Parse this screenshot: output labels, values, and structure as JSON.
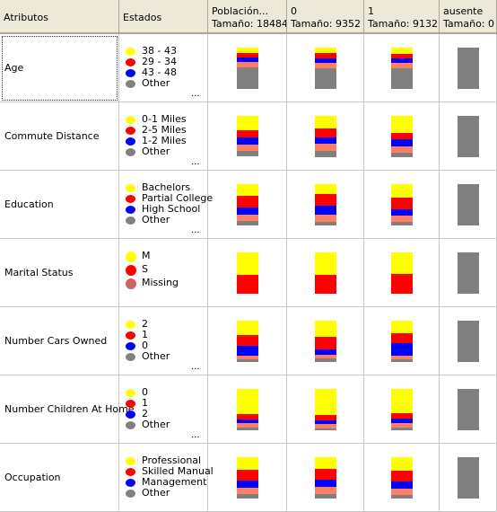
{
  "header": {
    "col_attr": "Atributos",
    "col_states": "Estados",
    "columns": [
      {
        "title": "Población...",
        "size": "Tamaño: 18484"
      },
      {
        "title": "0",
        "size": "Tamaño: 9352"
      },
      {
        "title": "1",
        "size": "Tamaño: 9132"
      },
      {
        "title": "ausente",
        "size": "Tamaño: 0"
      }
    ]
  },
  "colors": {
    "yellow": "#ffff00",
    "red": "#ff0000",
    "blue": "#0000ff",
    "salmon": "#ff8060",
    "gray": "#808080",
    "missing": "#cc6666"
  },
  "rows": [
    {
      "attribute": "Age",
      "selected": true,
      "states": [
        {
          "label": "38 - 43",
          "color": "#ffff00"
        },
        {
          "label": "29 - 34",
          "color": "#ff0000"
        },
        {
          "label": "43 - 48",
          "color": "#0000ff"
        },
        {
          "label": "Other",
          "color": "#808080"
        }
      ],
      "more": "...",
      "bars": [
        [
          0.14,
          0.11,
          0.1,
          0.12,
          0.53
        ],
        [
          0.12,
          0.13,
          0.11,
          0.12,
          0.52
        ],
        [
          0.15,
          0.1,
          0.1,
          0.13,
          0.52
        ],
        [
          0,
          0,
          0,
          0,
          1
        ]
      ]
    },
    {
      "attribute": "Commute Distance",
      "selected": false,
      "states": [
        {
          "label": "0-1 Miles",
          "color": "#ffff00"
        },
        {
          "label": "2-5 Miles",
          "color": "#ff0000"
        },
        {
          "label": "1-2 Miles",
          "color": "#0000ff"
        },
        {
          "label": "Other",
          "color": "#808080"
        }
      ],
      "more": "...",
      "bars": [
        [
          0.35,
          0.18,
          0.18,
          0.16,
          0.13
        ],
        [
          0.3,
          0.21,
          0.16,
          0.18,
          0.15
        ],
        [
          0.41,
          0.15,
          0.17,
          0.15,
          0.12
        ],
        [
          0,
          0,
          0,
          0,
          1
        ]
      ]
    },
    {
      "attribute": "Education",
      "selected": false,
      "states": [
        {
          "label": "Bachelors",
          "color": "#ffff00"
        },
        {
          "label": "Partial College",
          "color": "#ff0000"
        },
        {
          "label": "High School",
          "color": "#0000ff"
        },
        {
          "label": "Other",
          "color": "#808080"
        }
      ],
      "more": "...",
      "bars": [
        [
          0.28,
          0.28,
          0.18,
          0.16,
          0.1
        ],
        [
          0.24,
          0.28,
          0.21,
          0.17,
          0.1
        ],
        [
          0.32,
          0.28,
          0.16,
          0.15,
          0.09
        ],
        [
          0,
          0,
          0,
          0,
          1
        ]
      ]
    },
    {
      "attribute": "Marital Status",
      "selected": false,
      "states": [
        {
          "label": "M",
          "color": "#ffff00"
        },
        {
          "label": "S",
          "color": "#ff0000"
        },
        {
          "label": "Missing",
          "color": "#cc6666"
        }
      ],
      "more": "",
      "bars": [
        [
          0.54,
          0.46,
          0,
          0,
          0
        ],
        [
          0.54,
          0.46,
          0,
          0,
          0
        ],
        [
          0.52,
          0.48,
          0,
          0,
          0
        ],
        [
          0,
          0,
          0,
          0,
          1
        ]
      ]
    },
    {
      "attribute": "Number Cars Owned",
      "selected": false,
      "states": [
        {
          "label": "2",
          "color": "#ffff00"
        },
        {
          "label": "1",
          "color": "#ff0000"
        },
        {
          "label": "0",
          "color": "#0000ff"
        },
        {
          "label": "Other",
          "color": "#808080"
        }
      ],
      "more": "...",
      "bars": [
        [
          0.35,
          0.27,
          0.23,
          0.08,
          0.07
        ],
        [
          0.4,
          0.3,
          0.13,
          0.09,
          0.08
        ],
        [
          0.3,
          0.24,
          0.3,
          0.09,
          0.07
        ],
        [
          0,
          0,
          0,
          0,
          1
        ]
      ]
    },
    {
      "attribute": "Number Children At Home",
      "selected": false,
      "states": [
        {
          "label": "0",
          "color": "#ffff00"
        },
        {
          "label": "1",
          "color": "#ff0000"
        },
        {
          "label": "2",
          "color": "#0000ff"
        },
        {
          "label": "Other",
          "color": "#808080"
        }
      ],
      "more": "...",
      "bars": [
        [
          0.6,
          0.13,
          0.09,
          0.1,
          0.08
        ],
        [
          0.62,
          0.12,
          0.08,
          0.1,
          0.08
        ],
        [
          0.58,
          0.14,
          0.1,
          0.1,
          0.08
        ],
        [
          0,
          0,
          0,
          0,
          1
        ]
      ]
    },
    {
      "attribute": "Occupation",
      "selected": false,
      "states": [
        {
          "label": "Professional",
          "color": "#ffff00"
        },
        {
          "label": "Skilled Manual",
          "color": "#ff0000"
        },
        {
          "label": "Management",
          "color": "#0000ff"
        },
        {
          "label": "Other",
          "color": "#808080"
        }
      ],
      "more": "",
      "bars": [
        [
          0.3,
          0.26,
          0.18,
          0.16,
          0.1
        ],
        [
          0.28,
          0.27,
          0.18,
          0.17,
          0.1
        ],
        [
          0.32,
          0.25,
          0.18,
          0.15,
          0.1
        ],
        [
          0,
          0,
          0,
          0,
          1
        ]
      ]
    }
  ]
}
